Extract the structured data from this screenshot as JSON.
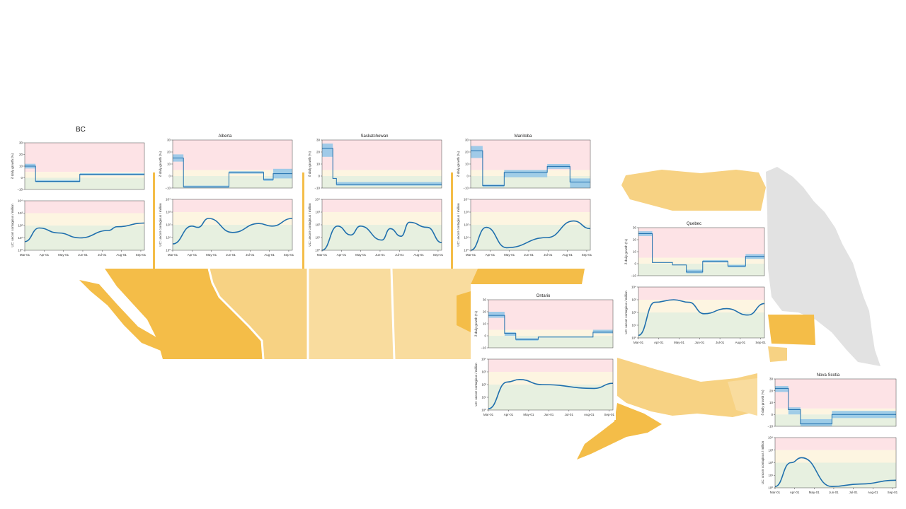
{
  "colors": {
    "line": "#1f6fad",
    "band_dark": "#5aa8dc",
    "band_light": "#8fc5e8",
    "zone_red": "#fde3e6",
    "zone_yellow": "#fdf5e1",
    "zone_green": "#e7f0e0",
    "map_dark": "#f4bd48",
    "map_mid": "#f7d283",
    "map_light": "#f9dc9e",
    "map_grey": "#e2e2e2"
  },
  "shared": {
    "growth_ylabel": "δ daily growth (%)",
    "cases_ylabel": "UC: uncorr contagious / million",
    "growth_yticks": [
      "30",
      "20",
      "10",
      "0",
      "−10"
    ],
    "cases_yticks": [
      "10⁴",
      "10³",
      "10²",
      "10¹",
      "10⁰"
    ],
    "xticks": [
      "Mar-01",
      "Apr-01",
      "May-01",
      "Jun-01",
      "Jul-01",
      "Aug-01",
      "Sep-01"
    ]
  },
  "chart_data": [
    {
      "type": "line",
      "title": "BC",
      "xlabel": "",
      "ylabel": "δ daily growth (%) / UC: uncorr contagious / million",
      "growth": {
        "ylim": [
          -10,
          30
        ],
        "steps": [
          [
            0,
            10,
            12,
            8
          ],
          [
            0.09,
            -3,
            -2,
            -4
          ],
          [
            0.46,
            3,
            4,
            2
          ],
          [
            1,
            3,
            4,
            2
          ]
        ]
      },
      "cases": {
        "ylim": [
          0,
          4
        ],
        "points": [
          [
            0,
            0.7
          ],
          [
            0.12,
            1.8
          ],
          [
            0.28,
            1.4
          ],
          [
            0.46,
            1.0
          ],
          [
            0.7,
            1.6
          ],
          [
            0.77,
            1.9
          ],
          [
            1,
            2.2
          ]
        ]
      }
    },
    {
      "type": "line",
      "title": "Alberta",
      "xlabel": "",
      "ylabel": "δ daily growth (%) / UC: uncorr contagious / million",
      "growth": {
        "ylim": [
          -10,
          30
        ],
        "steps": [
          [
            0,
            15,
            18,
            12
          ],
          [
            0.09,
            -9,
            -8,
            -10
          ],
          [
            0.47,
            3,
            4,
            2
          ],
          [
            0.76,
            -3,
            -2,
            -4
          ],
          [
            0.84,
            2,
            6,
            -2
          ],
          [
            1,
            2,
            6,
            -2
          ]
        ]
      },
      "cases": {
        "ylim": [
          0,
          4
        ],
        "points": [
          [
            0,
            0.5
          ],
          [
            0.16,
            1.9
          ],
          [
            0.21,
            1.8
          ],
          [
            0.3,
            2.5
          ],
          [
            0.5,
            1.4
          ],
          [
            0.72,
            2.1
          ],
          [
            0.83,
            1.9
          ],
          [
            1,
            2.5
          ]
        ]
      }
    },
    {
      "type": "line",
      "title": "Saskatchewan",
      "xlabel": "",
      "ylabel": "δ daily growth (%) / UC: uncorr contagious / million",
      "growth": {
        "ylim": [
          -10,
          30
        ],
        "steps": [
          [
            0,
            23,
            27,
            16
          ],
          [
            0.09,
            -2,
            -2,
            -2
          ],
          [
            0.12,
            -7,
            -5,
            -8
          ],
          [
            1,
            -7,
            -5,
            -8
          ]
        ]
      },
      "cases": {
        "ylim": [
          0,
          4
        ],
        "points": [
          [
            0,
            0
          ],
          [
            0.13,
            1.9
          ],
          [
            0.24,
            1.2
          ],
          [
            0.32,
            1.9
          ],
          [
            0.5,
            0.8
          ],
          [
            0.57,
            1.7
          ],
          [
            0.66,
            1.1
          ],
          [
            0.73,
            2.2
          ],
          [
            0.88,
            1.8
          ],
          [
            1,
            0.6
          ]
        ]
      }
    },
    {
      "type": "line",
      "title": "Manitoba",
      "xlabel": "",
      "ylabel": "δ daily growth (%) / UC: uncorr contagious / million",
      "growth": {
        "ylim": [
          -10,
          30
        ],
        "steps": [
          [
            0,
            21,
            25,
            15
          ],
          [
            0.1,
            -8,
            -7,
            -9
          ],
          [
            0.28,
            3,
            5,
            -1
          ],
          [
            0.64,
            8,
            10,
            6
          ],
          [
            0.83,
            -5,
            -2,
            -10
          ],
          [
            1,
            -5,
            -2,
            -10
          ]
        ]
      },
      "cases": {
        "ylim": [
          0,
          4
        ],
        "points": [
          [
            0,
            0
          ],
          [
            0.13,
            1.8
          ],
          [
            0.3,
            0.2
          ],
          [
            0.64,
            1.0
          ],
          [
            0.86,
            2.3
          ],
          [
            1,
            1.7
          ]
        ]
      }
    },
    {
      "type": "line",
      "title": "Ontario",
      "xlabel": "",
      "ylabel": "δ daily growth (%) / UC: uncorr contagious / million",
      "growth": {
        "ylim": [
          -10,
          30
        ],
        "steps": [
          [
            0,
            17,
            20,
            15
          ],
          [
            0.13,
            2,
            3,
            0
          ],
          [
            0.22,
            -3,
            -2,
            -4
          ],
          [
            0.4,
            -1,
            -1,
            -1
          ],
          [
            0.84,
            3,
            5,
            2
          ],
          [
            1,
            3,
            5,
            2
          ]
        ]
      },
      "cases": {
        "ylim": [
          0,
          4
        ],
        "points": [
          [
            0,
            0.1
          ],
          [
            0.15,
            2.2
          ],
          [
            0.25,
            2.4
          ],
          [
            0.43,
            2.0
          ],
          [
            0.85,
            1.7
          ],
          [
            1,
            2.1
          ]
        ]
      }
    },
    {
      "type": "line",
      "title": "Quebec",
      "xlabel": "",
      "ylabel": "δ daily growth (%) / UC: uncorr contagious / million",
      "growth": {
        "ylim": [
          -10,
          30
        ],
        "steps": [
          [
            0,
            25,
            27,
            23
          ],
          [
            0.11,
            1,
            1,
            1
          ],
          [
            0.27,
            -1,
            -1,
            -1
          ],
          [
            0.38,
            -7,
            -5,
            -8
          ],
          [
            0.51,
            2,
            3,
            1
          ],
          [
            0.71,
            -2,
            -1,
            -3
          ],
          [
            0.85,
            6,
            8,
            4
          ],
          [
            1,
            6,
            8,
            4
          ]
        ]
      },
      "cases": {
        "ylim": [
          0,
          4
        ],
        "points": [
          [
            0,
            0.2
          ],
          [
            0.13,
            2.8
          ],
          [
            0.28,
            3.0
          ],
          [
            0.4,
            2.8
          ],
          [
            0.52,
            1.9
          ],
          [
            0.7,
            2.3
          ],
          [
            0.87,
            1.8
          ],
          [
            1,
            2.7
          ]
        ]
      }
    },
    {
      "type": "line",
      "title": "Nova Scotia",
      "xlabel": "",
      "ylabel": "δ daily growth (%) / UC: uncorr contagious / million",
      "growth": {
        "ylim": [
          -10,
          30
        ],
        "steps": [
          [
            0,
            22,
            24,
            19
          ],
          [
            0.11,
            4,
            6,
            0
          ],
          [
            0.21,
            -8,
            -4,
            -10
          ],
          [
            0.47,
            0,
            3,
            -3
          ],
          [
            1,
            0,
            3,
            -3
          ]
        ]
      },
      "cases": {
        "ylim": [
          0,
          4
        ],
        "points": [
          [
            0,
            0.1
          ],
          [
            0.13,
            2.0
          ],
          [
            0.22,
            2.4
          ],
          [
            0.47,
            0.1
          ],
          [
            0.7,
            0.3
          ],
          [
            1,
            0.6
          ]
        ]
      }
    }
  ]
}
